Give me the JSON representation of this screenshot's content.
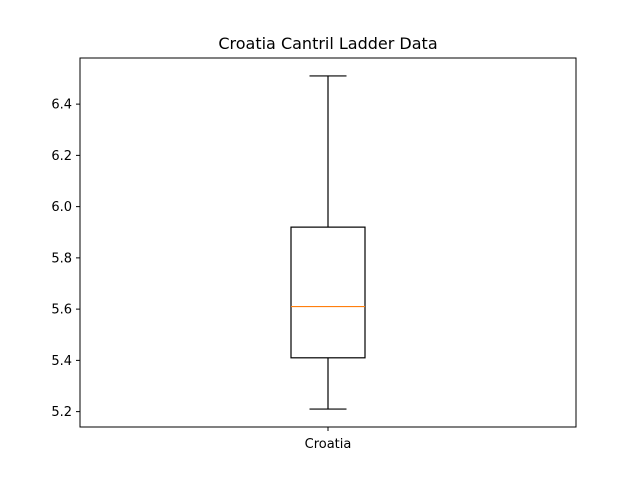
{
  "chart_data": {
    "type": "box",
    "title": "Croatia Cantril Ladder Data",
    "xlabel": "",
    "ylabel": "",
    "categories": [
      "Croatia"
    ],
    "boxes": [
      {
        "category": "Croatia",
        "whisker_low": 5.21,
        "q1": 5.41,
        "median": 5.61,
        "q3": 5.92,
        "whisker_high": 6.51
      }
    ],
    "ylim": [
      5.14,
      6.58
    ],
    "yticks": [
      5.2,
      5.4,
      5.6,
      5.8,
      6.0,
      6.2,
      6.4
    ],
    "ytick_labels": [
      "5.2",
      "5.4",
      "5.6",
      "5.8",
      "6.0",
      "6.2",
      "6.4"
    ],
    "grid": false,
    "legend": "none",
    "colors": {
      "box": "#000000",
      "median": "#ff7f0e",
      "axes": "#000000"
    }
  }
}
